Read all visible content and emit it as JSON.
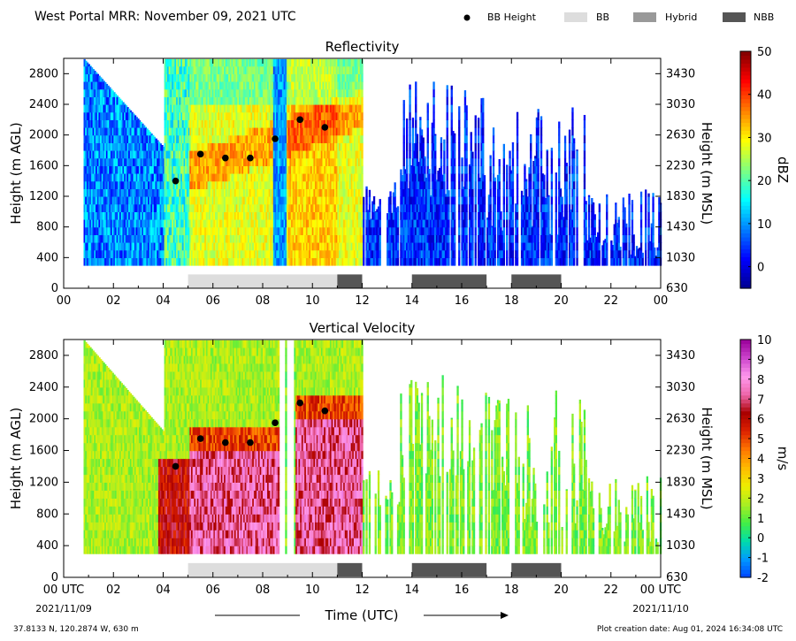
{
  "header": {
    "title": "West Portal MRR:  November 09, 2021 UTC",
    "legend": [
      {
        "label": "BB Height",
        "kind": "dot",
        "color": "#000000"
      },
      {
        "label": "BB",
        "kind": "box",
        "color": "#dddddd"
      },
      {
        "label": "Hybrid",
        "kind": "box",
        "color": "#999999"
      },
      {
        "label": "NBB",
        "kind": "box",
        "color": "#555555"
      }
    ]
  },
  "footer": {
    "location": "37.8133 N, 120.2874 W, 630 m",
    "creation": "Plot creation date: Aug 01, 2024 16:34:08 UTC",
    "xlabel": "Time (UTC)",
    "start_date": "2021/11/09",
    "end_date": "2021/11/10"
  },
  "chart_data": [
    {
      "type": "heatmap",
      "title": "Reflectivity",
      "ylabel": "Height (m AGL)",
      "y2label": "Height (m MSL)",
      "xlim": [
        0,
        24
      ],
      "ylim": [
        0,
        3000
      ],
      "xticklabels": [
        "00",
        "02",
        "04",
        "06",
        "08",
        "10",
        "12",
        "14",
        "16",
        "18",
        "20",
        "22",
        "00"
      ],
      "yticks": [
        0,
        400,
        800,
        1200,
        1600,
        2000,
        2400,
        2800
      ],
      "y2ticks": [
        "630",
        "1030",
        "1430",
        "1830",
        "2230",
        "2630",
        "3030",
        "3430"
      ],
      "colorbar": {
        "label": "dBZ",
        "min": -5,
        "max": 50,
        "ticks": [
          0,
          10,
          20,
          30,
          40,
          50
        ],
        "palette": "jet",
        "stops": [
          "#00008f",
          "#0000ff",
          "#007fff",
          "#00ffff",
          "#7fff7f",
          "#ffff00",
          "#ff7f00",
          "#ff0000",
          "#7f0000"
        ]
      },
      "bb_height": {
        "x": [
          4.5,
          5.5,
          6.5,
          7.5,
          8.5,
          9.5,
          10.5
        ],
        "y": [
          1400,
          1750,
          1700,
          1700,
          1950,
          2200,
          2100
        ]
      },
      "precip_type": [
        {
          "type": "BB",
          "start": 5.0,
          "end": 11.0
        },
        {
          "type": "NBB",
          "start": 11.0,
          "end": 12.0
        },
        {
          "type": "NBB",
          "start": 14.0,
          "end": 17.0
        },
        {
          "type": "NBB",
          "start": 18.0,
          "end": 20.0
        }
      ],
      "grid": false
    },
    {
      "type": "heatmap",
      "title": "Vertical Velocity",
      "ylabel": "Height (m AGL)",
      "y2label": "Height (m MSL)",
      "xlim": [
        0,
        24
      ],
      "ylim": [
        0,
        3000
      ],
      "xticklabels": [
        "00 UTC",
        "02",
        "04",
        "06",
        "08",
        "10",
        "12",
        "14",
        "16",
        "18",
        "20",
        "22",
        "00 UTC"
      ],
      "yticks": [
        0,
        400,
        800,
        1200,
        1600,
        2000,
        2400,
        2800
      ],
      "y2ticks": [
        "630",
        "1030",
        "1430",
        "1830",
        "2230",
        "2630",
        "3030",
        "3430"
      ],
      "colorbar": {
        "label": "m/s",
        "min": -2,
        "max": 10,
        "ticks": [
          -2,
          -1,
          0,
          1,
          2,
          3,
          4,
          5,
          6,
          7,
          8,
          9,
          10
        ],
        "tick_labels": [
          "-2",
          "-1",
          "0",
          "1",
          "2",
          "3",
          "4",
          "5",
          "6",
          "7",
          "8",
          "9",
          "10"
        ],
        "palette": "velocity",
        "stops": [
          "#0044ff",
          "#0099ff",
          "#00ddaa",
          "#44ee44",
          "#aaee22",
          "#eeee00",
          "#ffbb00",
          "#ff7700",
          "#dd2200",
          "#aa0000",
          "#ee66aa",
          "#ff99ee",
          "#cc44cc",
          "#990099"
        ]
      },
      "bb_height": {
        "x": [
          4.5,
          5.5,
          6.5,
          7.5,
          8.5,
          9.5,
          10.5
        ],
        "y": [
          1400,
          1750,
          1700,
          1700,
          1950,
          2200,
          2100
        ]
      },
      "precip_type": [
        {
          "type": "BB",
          "start": 5.0,
          "end": 11.0
        },
        {
          "type": "NBB",
          "start": 11.0,
          "end": 12.0
        },
        {
          "type": "NBB",
          "start": 14.0,
          "end": 17.0
        },
        {
          "type": "NBB",
          "start": 18.0,
          "end": 20.0
        }
      ],
      "grid": false
    }
  ]
}
